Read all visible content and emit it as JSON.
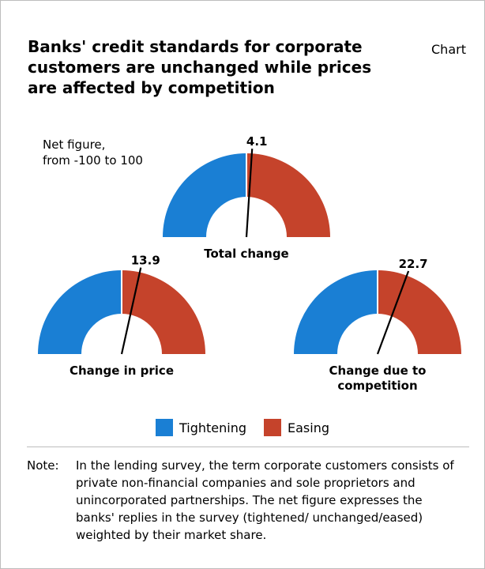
{
  "header": {
    "title": "Banks' credit standards for corporate customers are unchanged while prices are affected by competition",
    "tag": "Chart"
  },
  "unit_label": "Net figure,\nfrom -100 to 100",
  "colors": {
    "tightening": "#1a7fd4",
    "easing": "#c5432b",
    "needle": "#000000"
  },
  "chart_data": {
    "type": "gauge",
    "scale": [
      -100,
      100
    ],
    "gauges": [
      {
        "label": "Total change",
        "value": 4.1,
        "value_label": "4.1"
      },
      {
        "label": "Change in price",
        "value": 13.9,
        "value_label": "13.9"
      },
      {
        "label": "Change due to\ncompetition",
        "value": 22.7,
        "value_label": "22.7"
      }
    ],
    "legend": [
      "Tightening",
      "Easing"
    ]
  },
  "note": {
    "label": "Note:",
    "text": "In the lending survey, the term corporate customers consists of private non-financial companies and sole proprietors and unincorporated partnerships. The net figure expresses the banks' replies in the survey (tightened/ unchanged/eased) weighted by their market share."
  }
}
